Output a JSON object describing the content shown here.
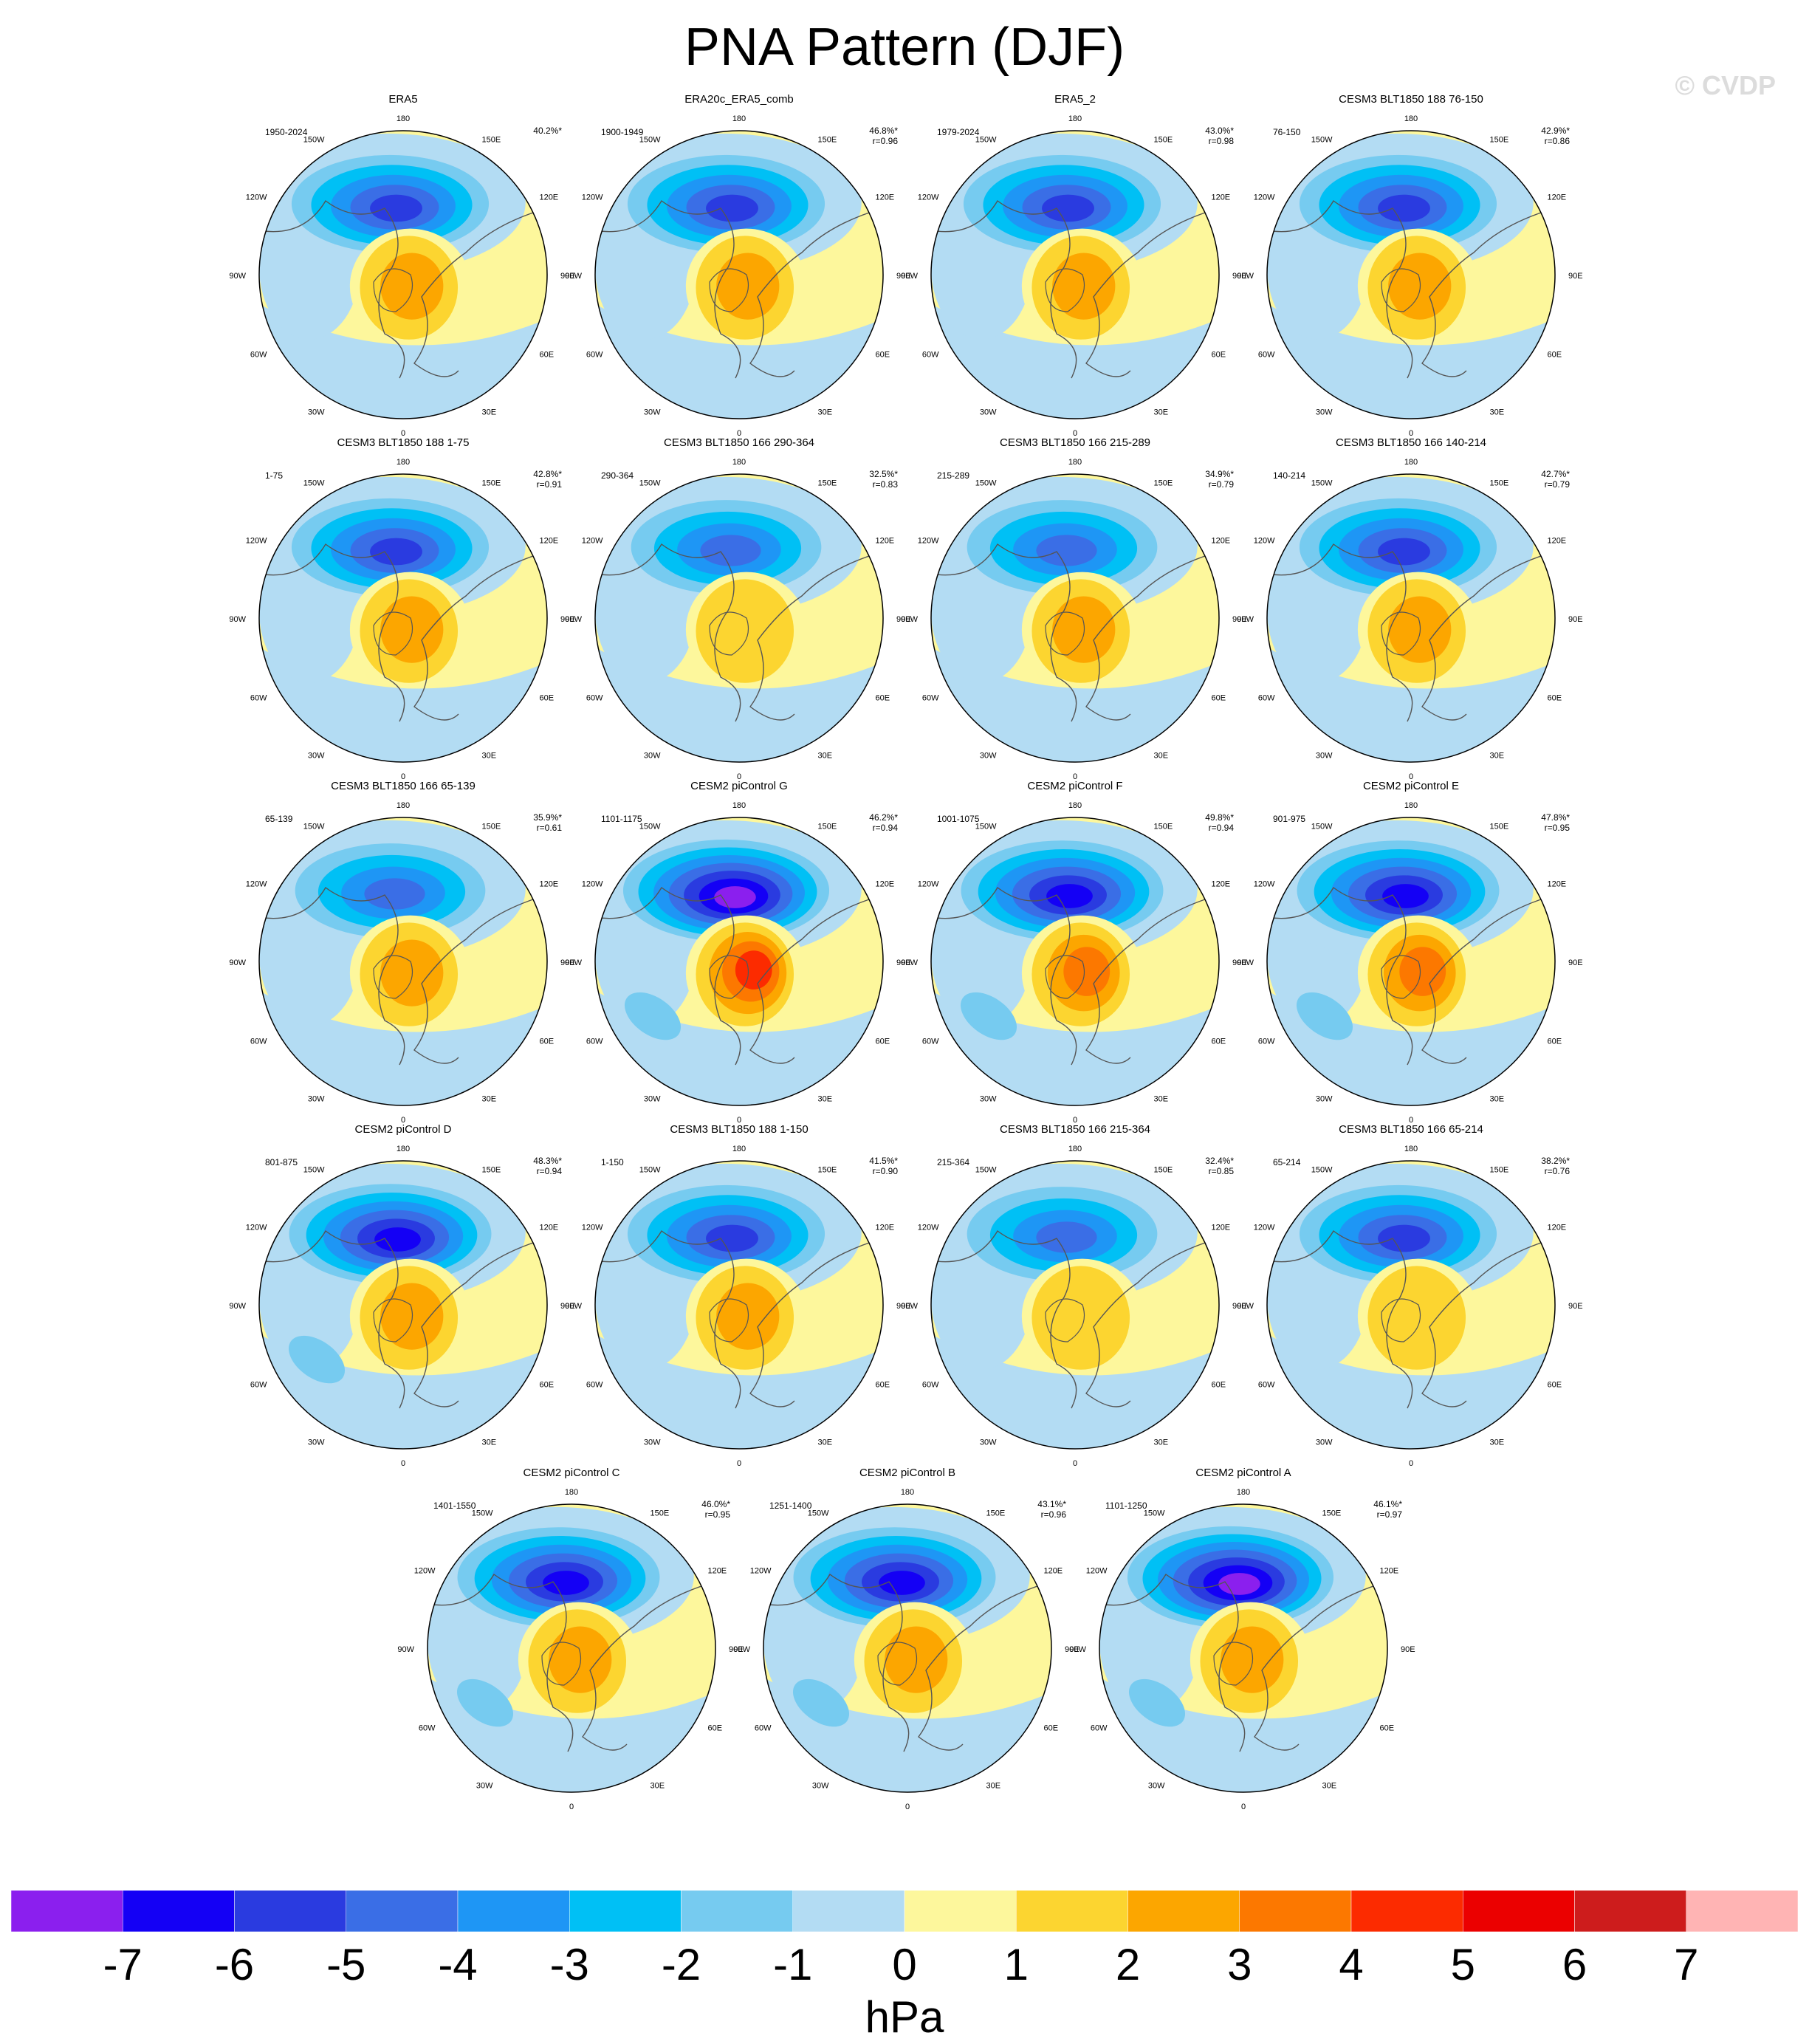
{
  "title": "PNA Pattern (DJF)",
  "watermark": "© CVDP",
  "colorbar": {
    "unit": "hPa",
    "tick_labels": [
      "-7",
      "-6",
      "-5",
      "-4",
      "-3",
      "-2",
      "-1",
      "0",
      "1",
      "2",
      "3",
      "4",
      "5",
      "6",
      "7"
    ],
    "colors": [
      "#8b1fee",
      "#1400f5",
      "#2a3be0",
      "#3a6ee6",
      "#1e96f5",
      "#00c0f5",
      "#76cbf0",
      "#b3dcf3",
      "#fdf79c",
      "#fcd530",
      "#fca600",
      "#fc7800",
      "#fc2b00",
      "#eb0000",
      "#cd1c1c",
      "#ffb4b4"
    ]
  },
  "map_labels": {
    "lon": [
      "180",
      "150E",
      "120E",
      "90E",
      "60E",
      "30E",
      "0",
      "30W",
      "60W",
      "90W",
      "120W",
      "150W"
    ]
  },
  "chart_data": {
    "type": "heatmap",
    "description_units": "hPa",
    "panels": [
      {
        "name": "ERA5",
        "years": "1950-2024",
        "pct": "40.2%*",
        "r": "",
        "pac": -5,
        "arc": 2,
        "atl": -1
      },
      {
        "name": "ERA20c_ERA5_comb",
        "years": "1900-1949",
        "pct": "46.8%*",
        "r": "r=0.96",
        "pac": -5,
        "arc": 2,
        "atl": -1
      },
      {
        "name": "ERA5_2",
        "years": "1979-2024",
        "pct": "43.0%*",
        "r": "r=0.98",
        "pac": -5,
        "arc": 2,
        "atl": -1
      },
      {
        "name": "CESM3 BLT1850 188 76-150",
        "years": "76-150",
        "pct": "42.9%*",
        "r": "r=0.86",
        "pac": -5,
        "arc": 2,
        "atl": 0
      },
      {
        "name": "CESM3 BLT1850 188 1-75",
        "years": "1-75",
        "pct": "42.8%*",
        "r": "r=0.91",
        "pac": -5,
        "arc": 2,
        "atl": -1
      },
      {
        "name": "CESM3 BLT1850 166 290-364",
        "years": "290-364",
        "pct": "32.5%*",
        "r": "r=0.83",
        "pac": -4,
        "arc": 1,
        "atl": 0
      },
      {
        "name": "CESM3 BLT1850 166 215-289",
        "years": "215-289",
        "pct": "34.9%*",
        "r": "r=0.79",
        "pac": -4,
        "arc": 2,
        "atl": 0
      },
      {
        "name": "CESM3 BLT1850 166 140-214",
        "years": "140-214",
        "pct": "42.7%*",
        "r": "r=0.79",
        "pac": -5,
        "arc": 2,
        "atl": 0
      },
      {
        "name": "CESM3 BLT1850 166 65-139",
        "years": "65-139",
        "pct": "35.9%*",
        "r": "r=0.61",
        "pac": -4,
        "arc": 2,
        "atl": -1
      },
      {
        "name": "CESM2 piControl G",
        "years": "1101-1175",
        "pct": "46.2%*",
        "r": "r=0.94",
        "pac": -7,
        "arc": 4,
        "atl": -2
      },
      {
        "name": "CESM2 piControl F",
        "years": "1001-1075",
        "pct": "49.8%*",
        "r": "r=0.94",
        "pac": -6,
        "arc": 3,
        "atl": -2
      },
      {
        "name": "CESM2 piControl E",
        "years": "901-975",
        "pct": "47.8%*",
        "r": "r=0.95",
        "pac": -6,
        "arc": 3,
        "atl": -2
      },
      {
        "name": "CESM2 piControl D",
        "years": "801-875",
        "pct": "48.3%*",
        "r": "r=0.94",
        "pac": -6,
        "arc": 2,
        "atl": -2
      },
      {
        "name": "CESM3 BLT1850 188 1-150",
        "years": "1-150",
        "pct": "41.5%*",
        "r": "r=0.90",
        "pac": -5,
        "arc": 2,
        "atl": -1
      },
      {
        "name": "CESM3 BLT1850 166 215-364",
        "years": "215-364",
        "pct": "32.4%*",
        "r": "r=0.85",
        "pac": -4,
        "arc": 1,
        "atl": -1
      },
      {
        "name": "CESM3 BLT1850 166 65-214",
        "years": "65-214",
        "pct": "38.2%*",
        "r": "r=0.76",
        "pac": -5,
        "arc": 1,
        "atl": -1
      },
      {
        "name": "CESM2 piControl C",
        "years": "1401-1550",
        "pct": "46.0%*",
        "r": "r=0.95",
        "pac": -6,
        "arc": 2,
        "atl": -2
      },
      {
        "name": "CESM2 piControl B",
        "years": "1251-1400",
        "pct": "43.1%*",
        "r": "r=0.96",
        "pac": -6,
        "arc": 2,
        "atl": -2
      },
      {
        "name": "CESM2 piControl A",
        "years": "1101-1250",
        "pct": "46.1%*",
        "r": "r=0.97",
        "pac": -7,
        "arc": 2,
        "atl": -2
      }
    ]
  }
}
